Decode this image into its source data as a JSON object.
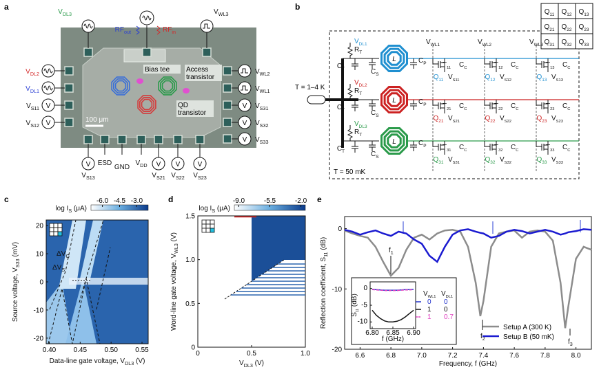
{
  "panel_a": {
    "letter": "a",
    "top": [
      {
        "label": {
          "base": "V",
          "sub": "DL3"
        },
        "color": "#2a9a4a",
        "icon": "sine"
      },
      {
        "label": {
          "base": "V",
          "sub": "WL3"
        },
        "color": "#111111",
        "icon": "square"
      }
    ],
    "left": [
      {
        "label": {
          "base": "V",
          "sub": "DL2"
        },
        "color": "#d42a2a",
        "icon": "sine"
      },
      {
        "label": {
          "base": "V",
          "sub": "DL1"
        },
        "color": "#2a3fd4",
        "icon": "sine"
      },
      {
        "label": {
          "base": "V",
          "sub": "S11"
        },
        "color": "#111111",
        "icon": "meter"
      },
      {
        "label": {
          "base": "V",
          "sub": "S12"
        },
        "color": "#111111",
        "icon": "meter"
      }
    ],
    "right": [
      {
        "label": {
          "base": "V",
          "sub": "WL2"
        },
        "color": "#111111",
        "icon": "square"
      },
      {
        "label": {
          "base": "V",
          "sub": "WL1"
        },
        "color": "#111111",
        "icon": "square"
      },
      {
        "label": {
          "base": "V",
          "sub": "S31"
        },
        "color": "#111111",
        "icon": "meter"
      },
      {
        "label": {
          "base": "V",
          "sub": "S32"
        },
        "color": "#111111",
        "icon": "meter"
      },
      {
        "label": {
          "base": "V",
          "sub": "S33"
        },
        "color": "#111111",
        "icon": "meter"
      }
    ],
    "bottom": [
      {
        "label": {
          "base": "V",
          "sub": "S13"
        },
        "color": "#111111",
        "icon": "meter"
      },
      {
        "label": "ESD",
        "color": "#111111",
        "icon": "none"
      },
      {
        "label": "GND",
        "color": "#111111",
        "icon": "none"
      },
      {
        "label": {
          "base": "V",
          "sub": "DD"
        },
        "color": "#111111",
        "icon": "none"
      },
      {
        "label": {
          "base": "V",
          "sub": "S21"
        },
        "color": "#111111",
        "icon": "meter"
      },
      {
        "label": {
          "base": "V",
          "sub": "S22"
        },
        "color": "#111111",
        "icon": "meter"
      },
      {
        "label": {
          "base": "V",
          "sub": "S23"
        },
        "color": "#111111",
        "icon": "meter"
      }
    ],
    "rf_out": {
      "base": "RF",
      "sub": "out"
    },
    "rf_in": {
      "base": "RF",
      "sub": "in"
    },
    "annotations": [
      [
        "Bias tee"
      ],
      [
        "Access",
        "transistor"
      ],
      [
        "QD",
        "transistor"
      ]
    ],
    "scale_bar": "100 μm",
    "meter_symbol": "V"
  },
  "panel_b": {
    "letter": "b",
    "temp_top": "T = 1–4 K",
    "temp_bottom": "T = 50 mK",
    "components": {
      "rt": {
        "base": "R",
        "sub": "T"
      },
      "ct": {
        "base": "C",
        "sub": "T"
      },
      "cs": {
        "base": "C",
        "sub": "S"
      },
      "cp": {
        "base": "C",
        "sub": "P"
      },
      "cc": {
        "base": "C",
        "sub": "C"
      },
      "l": "L"
    },
    "wordlines": [
      {
        "base": "V",
        "sub": "WL1"
      },
      {
        "base": "V",
        "sub": "WL2"
      },
      {
        "base": "V",
        "sub": "WL3"
      }
    ],
    "rows": [
      {
        "dl": {
          "base": "V",
          "sub": "DL1"
        },
        "color": "#1f8fd0"
      },
      {
        "dl": {
          "base": "V",
          "sub": "DL2"
        },
        "color": "#cc2222"
      },
      {
        "dl": {
          "base": "V",
          "sub": "DL3"
        },
        "color": "#2a9a4a"
      }
    ],
    "cells": [
      [
        {
          "t": {
            "base": "T",
            "sub": "11"
          },
          "q": {
            "base": "Q",
            "sub": "11"
          },
          "vs": {
            "base": "V",
            "sub": "S11"
          }
        },
        {
          "t": {
            "base": "T",
            "sub": "12"
          },
          "q": {
            "base": "Q",
            "sub": "12"
          },
          "vs": {
            "base": "V",
            "sub": "S12"
          }
        },
        {
          "t": {
            "base": "T",
            "sub": "13"
          },
          "q": {
            "base": "Q",
            "sub": "13"
          },
          "vs": {
            "base": "V",
            "sub": "S13"
          }
        }
      ],
      [
        {
          "t": {
            "base": "T",
            "sub": "21"
          },
          "q": {
            "base": "Q",
            "sub": "21"
          },
          "vs": {
            "base": "V",
            "sub": "S21"
          }
        },
        {
          "t": {
            "base": "T",
            "sub": "22"
          },
          "q": {
            "base": "Q",
            "sub": "22"
          },
          "vs": {
            "base": "V",
            "sub": "S22"
          }
        },
        {
          "t": {
            "base": "T",
            "sub": "23"
          },
          "q": {
            "base": "Q",
            "sub": "23"
          },
          "vs": {
            "base": "V",
            "sub": "S23"
          }
        }
      ],
      [
        {
          "t": {
            "base": "T",
            "sub": "31"
          },
          "q": {
            "base": "Q",
            "sub": "31"
          },
          "vs": {
            "base": "V",
            "sub": "S31"
          }
        },
        {
          "t": {
            "base": "T",
            "sub": "32"
          },
          "q": {
            "base": "Q",
            "sub": "32"
          },
          "vs": {
            "base": "V",
            "sub": "S32"
          }
        },
        {
          "t": {
            "base": "T",
            "sub": "33"
          },
          "q": {
            "base": "Q",
            "sub": "33"
          },
          "vs": {
            "base": "V",
            "sub": "S33"
          }
        }
      ]
    ]
  },
  "chart_data": [
    {
      "type": "heatmap",
      "letter": "c",
      "xlabel": {
        "base": "Data-line gate voltage, V",
        "sub": "DL3",
        "tail": " (V)"
      },
      "ylabel": {
        "base": "Source voltage, V",
        "sub": "S33",
        "tail": " (mV)"
      },
      "xlim": [
        0.395,
        0.56
      ],
      "xticks": [
        {
          "value": 0.4,
          "label": "0.40"
        },
        {
          "value": 0.45,
          "label": "0.45"
        },
        {
          "value": 0.5,
          "label": "0.50"
        },
        {
          "value": 0.55,
          "label": "0.55"
        }
      ],
      "ylim": [
        -22,
        22
      ],
      "yticks": [
        -20,
        -10,
        0,
        10,
        20
      ],
      "colorbar_label": {
        "base": "log I",
        "sub": "S",
        "tail": " (μA)"
      },
      "clim": [
        -7,
        -2
      ],
      "cticks": [
        {
          "value": -6,
          "label": "-6.0"
        },
        {
          "value": -4.5,
          "label": "-4.5"
        },
        {
          "value": -3,
          "label": "-3.0"
        }
      ],
      "annotations": [
        {
          "base": "ΔV",
          "sub": "G"
        },
        {
          "base": "ΔV",
          "sub": "S"
        }
      ]
    },
    {
      "type": "heatmap",
      "letter": "d",
      "xlabel": {
        "base": "V",
        "sub": "DL3",
        "tail": " (V)"
      },
      "ylabel": {
        "base": "Word-line gate voltage, V",
        "sub": "WL3",
        "tail": " (V)"
      },
      "xlim": [
        0,
        1
      ],
      "xticks": [
        0,
        0.5,
        {
          "value": 1,
          "label": "1.0"
        }
      ],
      "ylim": [
        0,
        1.5
      ],
      "yticks": [
        0,
        0.5,
        {
          "value": 1,
          "label": "1.0"
        },
        1.5
      ],
      "colorbar_label": {
        "base": "log I",
        "sub": "S",
        "tail": " (μA)"
      },
      "clim": [
        -9.5,
        -1.5
      ],
      "cticks": [
        {
          "value": -9,
          "label": "-9.0"
        },
        {
          "value": -5.5,
          "label": "-5.5"
        },
        {
          "value": -2,
          "label": "-2.0"
        }
      ]
    },
    {
      "type": "line",
      "letter": "e",
      "xlabel": "Frequency, f (GHz)",
      "ylabel": {
        "base": "Reflection coefficient, S",
        "sub": "11",
        "tail": " (dB)"
      },
      "xlim": [
        6.5,
        8.1
      ],
      "xticks": [
        6.6,
        6.8,
        {
          "value": 7,
          "label": "7.0"
        },
        7.2,
        7.4,
        7.6,
        7.8,
        {
          "value": 8,
          "label": "8.0"
        }
      ],
      "ylim": [
        -20,
        2
      ],
      "yticks": [
        -20,
        -10,
        0
      ],
      "legend": "lower right",
      "x": [
        6.5,
        6.55,
        6.6,
        6.65,
        6.7,
        6.75,
        6.8,
        6.85,
        6.9,
        6.95,
        7.0,
        7.05,
        7.1,
        7.15,
        7.2,
        7.25,
        7.3,
        7.35,
        7.38,
        7.4,
        7.45,
        7.5,
        7.55,
        7.6,
        7.65,
        7.7,
        7.75,
        7.8,
        7.85,
        7.9,
        7.93,
        7.95,
        8.0,
        8.05,
        8.1
      ],
      "series": [
        {
          "name": "Setup A (300 K)",
          "color": "#8c8c8c",
          "values": [
            -0.3,
            -0.8,
            -1.2,
            -1.5,
            -3,
            -5.5,
            -7.8,
            -6.5,
            -3.5,
            -1.5,
            -1,
            -1.8,
            -0.8,
            -0.3,
            -0.2,
            -0.5,
            -3,
            -9,
            -14.5,
            -12,
            -3,
            -0.8,
            -0.5,
            -0.3,
            -1.5,
            -0.5,
            -0.3,
            -0.5,
            -2,
            -9,
            -16.5,
            -13,
            -5,
            -3,
            -3.5
          ]
        },
        {
          "name": "Setup B (50 mK)",
          "color": "#1a1ad0",
          "values": [
            -0.2,
            -0.5,
            -1,
            -0.6,
            -0.3,
            -0.8,
            -1.2,
            -0.5,
            -0.8,
            -1.8,
            -2.5,
            -4.5,
            -5.5,
            -3,
            -1,
            -0.3,
            -0.1,
            -0.5,
            -0.7,
            -0.8,
            -1.5,
            -1.2,
            -0.5,
            -0.2,
            -0.4,
            -0.8,
            -0.5,
            -0.2,
            -0.5,
            -1,
            -0.8,
            -0.6,
            -0.4,
            -0.1,
            -0.2
          ]
        }
      ],
      "annotations": [
        {
          "base": "f",
          "sub": "1"
        },
        {
          "base": "f",
          "sub": "2"
        },
        {
          "base": "f",
          "sub": "3"
        }
      ]
    },
    {
      "type": "line",
      "xlabel": "f (GHz)",
      "ylabel": {
        "base": "S",
        "sub": "11",
        "tail": " (dB)"
      },
      "xlim": [
        6.795,
        6.905
      ],
      "xticks": [
        {
          "value": 6.8,
          "label": "6.80"
        },
        {
          "value": 6.85,
          "label": "6.85"
        },
        {
          "value": 6.9,
          "label": "6.90"
        }
      ],
      "ylim": [
        -12,
        2
      ],
      "yticks": [
        0,
        -5,
        -10
      ],
      "legend_headers": [
        {
          "base": "V",
          "sub": "WL1"
        },
        {
          "base": "V",
          "sub": "DL1"
        }
      ],
      "x": [
        6.8,
        6.81,
        6.82,
        6.83,
        6.84,
        6.85,
        6.86,
        6.87,
        6.88,
        6.89,
        6.9
      ],
      "series": [
        {
          "wl1": "0",
          "dl1": "0",
          "color": "#2233cc",
          "values": [
            -0.2,
            -0.3,
            -0.4,
            -0.5,
            -0.5,
            -0.5,
            -0.5,
            -0.4,
            -0.3,
            -0.3,
            -0.2
          ]
        },
        {
          "wl1": "1",
          "dl1": "0",
          "color": "#111111",
          "values": [
            -6.5,
            -8,
            -9,
            -9.7,
            -10,
            -10,
            -9.8,
            -9.3,
            -8.5,
            -7.5,
            -6.5
          ]
        },
        {
          "wl1": "1",
          "dl1": "0.7",
          "color": "#e040c0",
          "dash": true,
          "values": [
            -0.3,
            -0.4,
            -0.5,
            -0.6,
            -0.6,
            -0.6,
            -0.6,
            -0.5,
            -0.4,
            -0.4,
            -0.3
          ]
        }
      ]
    }
  ]
}
